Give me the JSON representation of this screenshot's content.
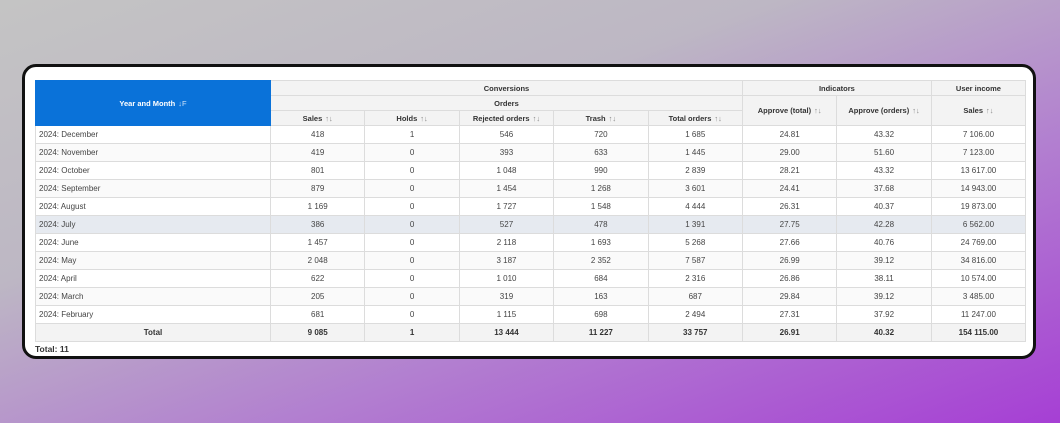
{
  "table": {
    "header": {
      "year_month": "Year and Month",
      "year_month_sort_icon": "↓F",
      "conversions": "Conversions",
      "orders": "Orders",
      "indicators": "Indicators",
      "user_income": "User income",
      "sort_icon": "↑↓",
      "columns": [
        "Sales",
        "Holds",
        "Rejected orders",
        "Trash",
        "Total orders",
        "Approve (total)",
        "Approve (orders)",
        "Sales"
      ]
    },
    "rows": [
      {
        "name": "2024: December",
        "values": [
          "418",
          "1",
          "546",
          "720",
          "1 685",
          "24.81",
          "43.32",
          "7 106.00"
        ]
      },
      {
        "name": "2024: November",
        "values": [
          "419",
          "0",
          "393",
          "633",
          "1 445",
          "29.00",
          "51.60",
          "7 123.00"
        ]
      },
      {
        "name": "2024: October",
        "values": [
          "801",
          "0",
          "1 048",
          "990",
          "2 839",
          "28.21",
          "43.32",
          "13 617.00"
        ]
      },
      {
        "name": "2024: September",
        "values": [
          "879",
          "0",
          "1 454",
          "1 268",
          "3 601",
          "24.41",
          "37.68",
          "14 943.00"
        ]
      },
      {
        "name": "2024: August",
        "values": [
          "1 169",
          "0",
          "1 727",
          "1 548",
          "4 444",
          "26.31",
          "40.37",
          "19 873.00"
        ]
      },
      {
        "name": "2024: July",
        "values": [
          "386",
          "0",
          "527",
          "478",
          "1 391",
          "27.75",
          "42.28",
          "6 562.00"
        ],
        "highlighted": true
      },
      {
        "name": "2024: June",
        "values": [
          "1 457",
          "0",
          "2 118",
          "1 693",
          "5 268",
          "27.66",
          "40.76",
          "24 769.00"
        ]
      },
      {
        "name": "2024: May",
        "values": [
          "2 048",
          "0",
          "3 187",
          "2 352",
          "7 587",
          "26.99",
          "39.12",
          "34 816.00"
        ]
      },
      {
        "name": "2024: April",
        "values": [
          "622",
          "0",
          "1 010",
          "684",
          "2 316",
          "26.86",
          "38.11",
          "10 574.00"
        ]
      },
      {
        "name": "2024: March",
        "values": [
          "205",
          "0",
          "319",
          "163",
          "687",
          "29.84",
          "39.12",
          "3 485.00"
        ]
      },
      {
        "name": "2024: February",
        "values": [
          "681",
          "0",
          "1 115",
          "698",
          "2 494",
          "27.31",
          "37.92",
          "11 247.00"
        ]
      }
    ],
    "total": {
      "name": "Total",
      "values": [
        "9 085",
        "1",
        "13 444",
        "11 227",
        "33 757",
        "26.91",
        "40.32",
        "154 115.00"
      ]
    }
  },
  "footer": {
    "total_label": "Total: 11"
  },
  "colors": {
    "header_accent": "#0a72d9",
    "highlight_row": "#e6eaf0"
  }
}
